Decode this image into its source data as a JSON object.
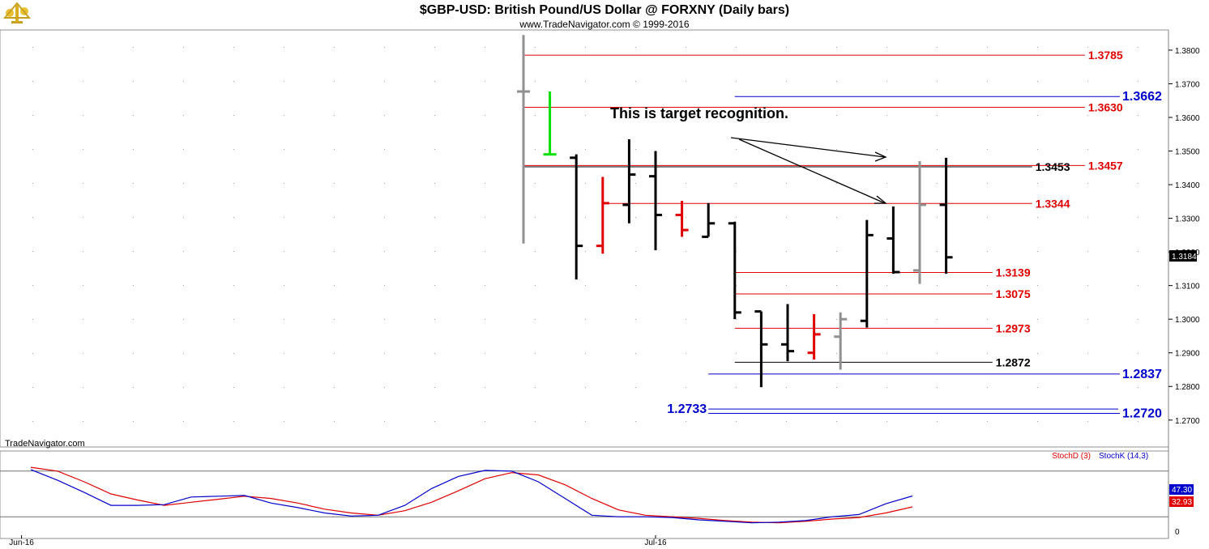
{
  "title": "$GBP-USD:  British Pound/US Dollar @ FORXNY  (Daily bars)",
  "copyright": "www.TradeNavigator.com © 1999-2016",
  "watermark": "TradeNavigator.com",
  "annotation": "This is target recognition.",
  "colors": {
    "red": "#e00000",
    "blue": "#0000cc",
    "black": "#000000",
    "gray": "#909090",
    "green": "#00e000",
    "stoch_d": "#e00000",
    "stoch_k": "#0000cc"
  },
  "chart_data": {
    "type": "ohlc",
    "y_range": [
      1.262,
      1.386
    ],
    "y_ticks": [
      "1.3800",
      "1.3700",
      "1.3600",
      "1.3500",
      "1.3400",
      "1.3300",
      "1.3200",
      "1.3100",
      "1.3000",
      "1.2900",
      "1.2800",
      "1.2700"
    ],
    "x_labels": [
      {
        "label": "Jun-16",
        "index": -19
      },
      {
        "label": "Jul-16",
        "index": 5
      }
    ],
    "last_price": "1.3184",
    "bars": [
      {
        "o": 1.3677,
        "h": 1.3845,
        "l": 1.3225,
        "c": 1.3677,
        "color": "gray"
      },
      {
        "o": 1.349,
        "h": 1.3677,
        "l": 1.349,
        "c": 1.349,
        "color": "green"
      },
      {
        "o": 1.348,
        "h": 1.349,
        "l": 1.3118,
        "c": 1.3218,
        "color": "black"
      },
      {
        "o": 1.3218,
        "h": 1.3423,
        "l": 1.3195,
        "c": 1.3345,
        "color": "red"
      },
      {
        "o": 1.334,
        "h": 1.3535,
        "l": 1.3285,
        "c": 1.343,
        "color": "black"
      },
      {
        "o": 1.3425,
        "h": 1.35,
        "l": 1.3205,
        "c": 1.331,
        "color": "black"
      },
      {
        "o": 1.331,
        "h": 1.3352,
        "l": 1.3245,
        "c": 1.3265,
        "color": "red"
      },
      {
        "o": 1.3245,
        "h": 1.3345,
        "l": 1.3245,
        "c": 1.3285,
        "color": "black"
      },
      {
        "o": 1.3285,
        "h": 1.329,
        "l": 1.3,
        "c": 1.302,
        "color": "black"
      },
      {
        "o": 1.3023,
        "h": 1.3023,
        "l": 1.2798,
        "c": 1.2925,
        "color": "black"
      },
      {
        "o": 1.2925,
        "h": 1.3045,
        "l": 1.2875,
        "c": 1.2905,
        "color": "black"
      },
      {
        "o": 1.29,
        "h": 1.3015,
        "l": 1.288,
        "c": 1.2955,
        "color": "red"
      },
      {
        "o": 1.2948,
        "h": 1.302,
        "l": 1.285,
        "c": 1.3,
        "color": "gray"
      },
      {
        "o": 1.2995,
        "h": 1.3295,
        "l": 1.2975,
        "c": 1.325,
        "color": "black"
      },
      {
        "o": 1.324,
        "h": 1.3335,
        "l": 1.3135,
        "c": 1.314,
        "color": "black"
      },
      {
        "o": 1.3145,
        "h": 1.347,
        "l": 1.3105,
        "c": 1.334,
        "color": "gray"
      },
      {
        "o": 1.334,
        "h": 1.348,
        "l": 1.3135,
        "c": 1.3184,
        "color": "black"
      }
    ],
    "levels": [
      {
        "value": 1.3785,
        "label": "1.3785",
        "color": "red",
        "start": 0,
        "label_side": "right",
        "label_at": 21.5
      },
      {
        "value": 1.3662,
        "label": "1.3662",
        "color": "blue",
        "start": 8,
        "label_side": "right",
        "label_at": 25
      },
      {
        "value": 1.363,
        "label": "1.3630",
        "color": "red",
        "start": 0,
        "label_side": "right",
        "label_at": 21.5
      },
      {
        "value": 1.3457,
        "label": "1.3457",
        "color": "red",
        "start": 0,
        "label_side": "right",
        "label_at": 21.5
      },
      {
        "value": 1.3453,
        "label": "1.3453",
        "color": "black",
        "start": 0,
        "label_side": "right",
        "label_at": 19.5
      },
      {
        "value": 1.3344,
        "label": "1.3344",
        "color": "red",
        "start": 3,
        "label_side": "right",
        "label_at": 19.5
      },
      {
        "value": 1.3139,
        "label": "1.3139",
        "color": "red",
        "start": 8,
        "label_side": "right",
        "label_at": 18
      },
      {
        "value": 1.3075,
        "label": "1.3075",
        "color": "red",
        "start": 8,
        "label_side": "right",
        "label_at": 18
      },
      {
        "value": 1.2973,
        "label": "1.2973",
        "color": "red",
        "start": 8,
        "label_side": "right",
        "label_at": 18
      },
      {
        "value": 1.2872,
        "label": "1.2872",
        "color": "black",
        "start": 8,
        "label_side": "right",
        "label_at": 18
      },
      {
        "value": 1.2837,
        "label": "1.2837",
        "color": "blue",
        "start": 7,
        "label_side": "right",
        "label_at": 25
      },
      {
        "value": 1.2733,
        "label": "1.2733",
        "color": "blue",
        "start": 7,
        "label_side": "left",
        "label_at": 6.9
      },
      {
        "value": 1.272,
        "label": "1.2720",
        "color": "blue",
        "start": 7,
        "label_side": "right",
        "label_at": 25
      }
    ],
    "stochastic": {
      "legend_d": "StochD (3)",
      "legend_k": "StochK (14,3)",
      "value_k": "47.30",
      "value_d": "32.93",
      "zero_label": "0",
      "overbought": 80,
      "oversold": 20,
      "k_values": [
        82,
        68,
        52,
        35,
        35,
        36,
        46,
        47,
        48,
        38,
        32,
        25,
        21,
        22,
        35,
        57,
        73,
        81,
        80,
        66,
        44,
        22,
        20,
        20,
        19,
        16,
        14,
        12,
        13,
        15,
        20,
        23,
        37,
        47.3
      ],
      "d_values": [
        85,
        80,
        66,
        50,
        42,
        35,
        39,
        43,
        47,
        44,
        38,
        30,
        25,
        22,
        28,
        39,
        54,
        70,
        78,
        75,
        62,
        44,
        29,
        22,
        20,
        18,
        15,
        13,
        12,
        14,
        17,
        19,
        25,
        32.93
      ]
    }
  }
}
